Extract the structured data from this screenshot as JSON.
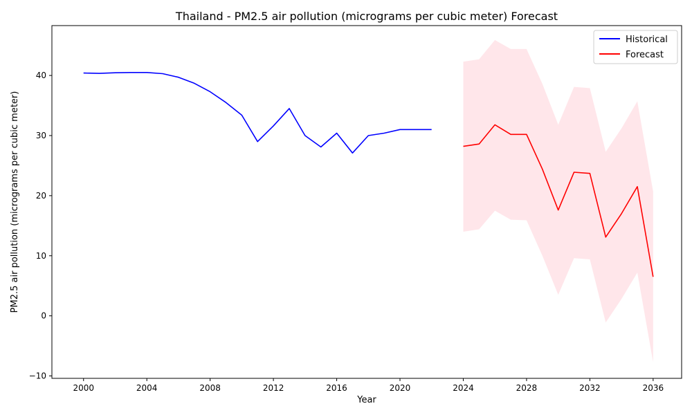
{
  "chart_data": {
    "type": "line",
    "title": "Thailand - PM2.5 air pollution (micrograms per cubic meter) Forecast",
    "xlabel": "Year",
    "ylabel": "PM2.5 air pollution (micrograms per cubic meter)",
    "xlim": [
      1998,
      2037.8
    ],
    "ylim": [
      -10.4,
      48.3
    ],
    "x_ticks": [
      2000,
      2004,
      2008,
      2012,
      2016,
      2020,
      2024,
      2028,
      2032,
      2036
    ],
    "y_ticks": [
      -10,
      0,
      10,
      20,
      30,
      40
    ],
    "grid": false,
    "legend_position": "top-right",
    "series": [
      {
        "name": "Historical",
        "color": "#0000ff",
        "x": [
          2000,
          2001,
          2002,
          2003,
          2004,
          2005,
          2006,
          2007,
          2008,
          2009,
          2010,
          2011,
          2012,
          2013,
          2014,
          2015,
          2016,
          2017,
          2018,
          2019,
          2020,
          2021,
          2022
        ],
        "y": [
          40.4,
          40.35,
          40.45,
          40.5,
          40.5,
          40.3,
          39.7,
          38.7,
          37.3,
          35.5,
          33.4,
          29.0,
          31.6,
          34.5,
          30.0,
          28.1,
          30.4,
          27.1,
          30.0,
          30.4,
          31.0,
          31.0,
          31.0
        ]
      },
      {
        "name": "Forecast",
        "color": "#ff0000",
        "x": [
          2024,
          2025,
          2026,
          2027,
          2028,
          2029,
          2030,
          2031,
          2032,
          2033,
          2034,
          2035,
          2036
        ],
        "y": [
          28.2,
          28.6,
          31.8,
          30.2,
          30.2,
          24.4,
          17.6,
          23.9,
          23.7,
          13.1,
          17.0,
          21.5,
          6.5
        ]
      }
    ],
    "confidence_band": {
      "color": "#ffc0cb",
      "opacity": 0.4,
      "x": [
        2024,
        2025,
        2026,
        2027,
        2028,
        2029,
        2030,
        2031,
        2032,
        2033,
        2034,
        2035,
        2036
      ],
      "lower": [
        14.0,
        14.4,
        17.5,
        16.0,
        15.9,
        10.0,
        3.5,
        9.6,
        9.4,
        -1.1,
        2.8,
        7.2,
        -7.7
      ],
      "upper": [
        42.3,
        42.7,
        45.9,
        44.4,
        44.4,
        38.6,
        31.8,
        38.1,
        37.9,
        27.3,
        31.2,
        35.7,
        20.7
      ]
    }
  }
}
